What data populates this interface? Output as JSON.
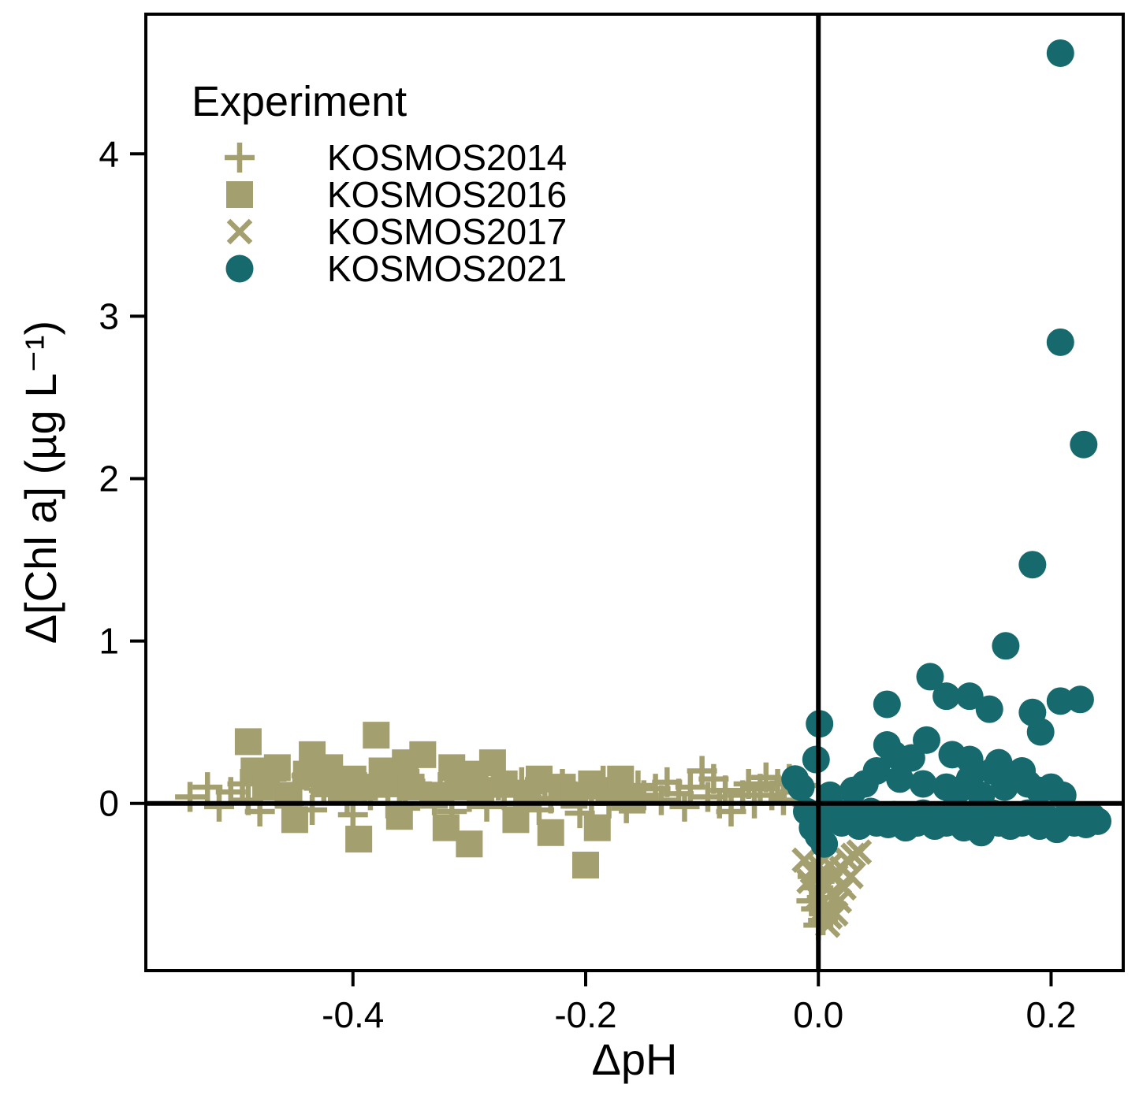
{
  "chart_data": {
    "type": "scatter",
    "title": "",
    "xlabel": "ΔpH",
    "ylabel": "Δ[Chl a] (µg L⁻¹)",
    "xlim": [
      -0.578,
      0.262
    ],
    "ylim": [
      -1.03,
      4.86
    ],
    "x_ticks": [
      -0.4,
      -0.2,
      0.0,
      0.2
    ],
    "x_tick_labels": [
      "-0.4",
      "-0.2",
      "0.0",
      "0.2"
    ],
    "y_ticks": [
      0,
      1,
      2,
      3,
      4
    ],
    "y_tick_labels": [
      "0",
      "1",
      "2",
      "3",
      "4"
    ],
    "grid": "off",
    "legend_title": "Experiment",
    "legend_position": "top-left-inside",
    "reference_lines": {
      "horizontal_y": 0,
      "vertical_x": 0,
      "color": "#000000"
    },
    "colors": {
      "olive": "#a49f6e",
      "teal": "#16696d",
      "axis": "#000000",
      "background": "#ffffff"
    },
    "series": [
      {
        "name": "KOSMOS2014",
        "marker": "plus",
        "color": "#a49f6e",
        "points": [
          [
            -0.54,
            0.04
          ],
          [
            -0.525,
            0.1
          ],
          [
            -0.515,
            -0.02
          ],
          [
            -0.505,
            0.07
          ],
          [
            -0.495,
            0.12
          ],
          [
            -0.49,
            0.02
          ],
          [
            -0.48,
            -0.05
          ],
          [
            -0.47,
            0.15
          ],
          [
            -0.465,
            0.06
          ],
          [
            -0.455,
            0.0
          ],
          [
            -0.45,
            0.1
          ],
          [
            -0.44,
            0.17
          ],
          [
            -0.435,
            -0.04
          ],
          [
            -0.425,
            0.08
          ],
          [
            -0.415,
            0.13
          ],
          [
            -0.405,
            0.03
          ],
          [
            -0.4,
            -0.07
          ],
          [
            -0.39,
            0.1
          ],
          [
            -0.385,
            0.05
          ],
          [
            -0.375,
            0.16
          ],
          [
            -0.37,
            0.0
          ],
          [
            -0.36,
            0.09
          ],
          [
            -0.355,
            -0.03
          ],
          [
            -0.345,
            0.12
          ],
          [
            -0.34,
            0.06
          ],
          [
            -0.33,
            0.02
          ],
          [
            -0.325,
            0.1
          ],
          [
            -0.315,
            -0.05
          ],
          [
            -0.305,
            0.14
          ],
          [
            -0.3,
            0.04
          ],
          [
            -0.29,
            0.08
          ],
          [
            -0.285,
            -0.02
          ],
          [
            -0.275,
            0.11
          ],
          [
            -0.27,
            0.05
          ],
          [
            -0.26,
            0.0
          ],
          [
            -0.255,
            0.13
          ],
          [
            -0.25,
            0.07
          ],
          [
            -0.24,
            -0.04
          ],
          [
            -0.235,
            0.09
          ],
          [
            -0.23,
            0.03
          ],
          [
            -0.22,
            0.12
          ],
          [
            -0.215,
            0.06
          ],
          [
            -0.205,
            -0.06
          ],
          [
            -0.2,
            0.1
          ],
          [
            -0.195,
            0.04
          ],
          [
            -0.185,
            0.14
          ],
          [
            -0.18,
            0.0
          ],
          [
            -0.17,
            0.08
          ],
          [
            -0.165,
            -0.03
          ],
          [
            -0.155,
            0.11
          ],
          [
            -0.15,
            0.05
          ],
          [
            -0.14,
            0.09
          ],
          [
            -0.135,
            0.02
          ],
          [
            -0.13,
            0.13
          ],
          [
            -0.12,
            0.06
          ],
          [
            -0.115,
            -0.02
          ],
          [
            -0.11,
            0.1
          ],
          [
            -0.1,
            0.2
          ],
          [
            -0.095,
            0.04
          ],
          [
            -0.09,
            0.15
          ],
          [
            -0.085,
            0.0
          ],
          [
            -0.08,
            0.08
          ],
          [
            -0.075,
            -0.05
          ],
          [
            -0.065,
            0.05
          ],
          [
            -0.06,
            0.12
          ],
          [
            -0.055,
            0.0
          ],
          [
            -0.05,
            0.09
          ],
          [
            -0.045,
            0.16
          ],
          [
            -0.04,
            0.05
          ],
          [
            -0.035,
            0.12
          ],
          [
            -0.03,
            0.02
          ],
          [
            -0.025,
            0.15
          ],
          [
            -0.02,
            0.07
          ],
          [
            -0.015,
            0.11
          ],
          [
            -0.005,
            -0.45
          ],
          [
            0.0,
            -0.52
          ],
          [
            0.003,
            -0.58
          ],
          [
            -0.002,
            -0.65
          ],
          [
            0.004,
            -0.72
          ],
          [
            -0.006,
            -0.6
          ],
          [
            0.001,
            -0.48
          ],
          [
            0.005,
            -0.68
          ],
          [
            0.0,
            -0.75
          ]
        ]
      },
      {
        "name": "KOSMOS2016",
        "marker": "square",
        "color": "#a49f6e",
        "points": [
          [
            -0.49,
            0.38
          ],
          [
            -0.485,
            0.2
          ],
          [
            -0.475,
            0.1
          ],
          [
            -0.465,
            0.22
          ],
          [
            -0.455,
            0.05
          ],
          [
            -0.45,
            -0.1
          ],
          [
            -0.44,
            0.18
          ],
          [
            -0.435,
            0.3
          ],
          [
            -0.425,
            0.12
          ],
          [
            -0.42,
            0.22
          ],
          [
            -0.41,
            0.08
          ],
          [
            -0.4,
            0.15
          ],
          [
            -0.395,
            -0.22
          ],
          [
            -0.39,
            0.1
          ],
          [
            -0.38,
            0.42
          ],
          [
            -0.375,
            0.2
          ],
          [
            -0.37,
            0.12
          ],
          [
            -0.36,
            -0.08
          ],
          [
            -0.355,
            0.25
          ],
          [
            -0.35,
            0.1
          ],
          [
            -0.34,
            0.3
          ],
          [
            -0.33,
            0.05
          ],
          [
            -0.32,
            -0.15
          ],
          [
            -0.315,
            0.22
          ],
          [
            -0.31,
            0.1
          ],
          [
            -0.3,
            -0.25
          ],
          [
            -0.295,
            0.18
          ],
          [
            -0.29,
            0.08
          ],
          [
            -0.28,
            0.25
          ],
          [
            -0.27,
            0.12
          ],
          [
            -0.26,
            -0.1
          ],
          [
            -0.25,
            0.05
          ],
          [
            -0.24,
            0.15
          ],
          [
            -0.23,
            -0.18
          ],
          [
            -0.22,
            0.1
          ],
          [
            -0.21,
            0.05
          ],
          [
            -0.2,
            -0.38
          ],
          [
            -0.195,
            0.12
          ],
          [
            -0.19,
            -0.15
          ],
          [
            -0.18,
            0.08
          ],
          [
            -0.17,
            0.15
          ],
          [
            -0.16,
            0.02
          ]
        ]
      },
      {
        "name": "KOSMOS2017",
        "marker": "x",
        "color": "#a49f6e",
        "points": [
          [
            -0.012,
            -0.35
          ],
          [
            -0.008,
            -0.48
          ],
          [
            -0.005,
            -0.42
          ],
          [
            0.0,
            -0.38
          ],
          [
            0.0,
            -0.58
          ],
          [
            0.003,
            -0.5
          ],
          [
            0.005,
            -0.65
          ],
          [
            0.008,
            -0.75
          ],
          [
            0.01,
            -0.38
          ],
          [
            0.01,
            -0.7
          ],
          [
            0.012,
            -0.55
          ],
          [
            0.015,
            -0.45
          ],
          [
            0.015,
            -0.68
          ],
          [
            0.018,
            -0.6
          ],
          [
            0.02,
            -0.4
          ],
          [
            0.022,
            -0.52
          ],
          [
            0.025,
            -0.35
          ],
          [
            0.028,
            -0.45
          ],
          [
            0.03,
            -0.32
          ],
          [
            0.035,
            -0.3
          ]
        ]
      },
      {
        "name": "KOSMOS2021",
        "marker": "circle",
        "color": "#16696d",
        "points": [
          [
            0.208,
            4.62
          ],
          [
            0.208,
            2.84
          ],
          [
            0.228,
            2.21
          ],
          [
            0.184,
            1.47
          ],
          [
            0.161,
            0.97
          ],
          [
            0.096,
            0.78
          ],
          [
            0.059,
            0.61
          ],
          [
            0.11,
            0.66
          ],
          [
            0.13,
            0.66
          ],
          [
            0.147,
            0.58
          ],
          [
            0.208,
            0.63
          ],
          [
            0.225,
            0.64
          ],
          [
            0.184,
            0.56
          ],
          [
            0.191,
            0.44
          ],
          [
            0.093,
            0.39
          ],
          [
            0.059,
            0.36
          ],
          [
            0.001,
            0.49
          ],
          [
            -0.002,
            0.27
          ],
          [
            0.065,
            0.3
          ],
          [
            0.08,
            0.28
          ],
          [
            0.115,
            0.3
          ],
          [
            0.13,
            0.27
          ],
          [
            0.155,
            0.25
          ],
          [
            0.175,
            0.2
          ],
          [
            0.05,
            0.2
          ],
          [
            0.07,
            0.15
          ],
          [
            0.09,
            0.12
          ],
          [
            0.11,
            0.1
          ],
          [
            0.13,
            0.15
          ],
          [
            0.15,
            0.2
          ],
          [
            0.16,
            0.1
          ],
          [
            0.17,
            0.15
          ],
          [
            0.18,
            0.12
          ],
          [
            0.19,
            0.08
          ],
          [
            0.2,
            0.1
          ],
          [
            0.21,
            0.05
          ],
          [
            0.12,
            0.08
          ],
          [
            0.14,
            0.05
          ],
          [
            0.03,
            0.08
          ],
          [
            0.01,
            0.05
          ],
          [
            0.04,
            0.12
          ],
          [
            -0.02,
            0.15
          ],
          [
            -0.015,
            0.1
          ],
          [
            -0.01,
            -0.05
          ],
          [
            -0.005,
            -0.15
          ],
          [
            0.0,
            -0.2
          ],
          [
            0.005,
            -0.25
          ],
          [
            0.005,
            -0.05
          ],
          [
            0.01,
            -0.1
          ],
          [
            0.015,
            -0.08
          ],
          [
            0.02,
            -0.12
          ],
          [
            0.025,
            -0.06
          ],
          [
            0.03,
            -0.1
          ],
          [
            0.035,
            -0.14
          ],
          [
            0.04,
            -0.08
          ],
          [
            0.045,
            -0.05
          ],
          [
            0.05,
            -0.12
          ],
          [
            0.055,
            -0.09
          ],
          [
            0.06,
            -0.13
          ],
          [
            0.065,
            -0.07
          ],
          [
            0.07,
            -0.1
          ],
          [
            0.075,
            -0.15
          ],
          [
            0.08,
            -0.08
          ],
          [
            0.085,
            -0.12
          ],
          [
            0.09,
            -0.06
          ],
          [
            0.095,
            -0.1
          ],
          [
            0.1,
            -0.14
          ],
          [
            0.105,
            -0.08
          ],
          [
            0.11,
            -0.12
          ],
          [
            0.115,
            -0.05
          ],
          [
            0.12,
            -0.1
          ],
          [
            0.125,
            -0.15
          ],
          [
            0.13,
            -0.08
          ],
          [
            0.135,
            -0.12
          ],
          [
            0.14,
            -0.18
          ],
          [
            0.145,
            -0.1
          ],
          [
            0.15,
            -0.06
          ],
          [
            0.155,
            -0.12
          ],
          [
            0.16,
            -0.09
          ],
          [
            0.165,
            -0.14
          ],
          [
            0.17,
            -0.08
          ],
          [
            0.175,
            -0.12
          ],
          [
            0.18,
            -0.06
          ],
          [
            0.185,
            -0.1
          ],
          [
            0.19,
            -0.14
          ],
          [
            0.195,
            -0.08
          ],
          [
            0.2,
            -0.12
          ],
          [
            0.205,
            -0.16
          ],
          [
            0.21,
            -0.1
          ],
          [
            0.215,
            -0.07
          ],
          [
            0.22,
            -0.12
          ],
          [
            0.225,
            -0.09
          ],
          [
            0.23,
            -0.13
          ],
          [
            0.235,
            -0.08
          ],
          [
            0.24,
            -0.11
          ]
        ]
      }
    ]
  }
}
